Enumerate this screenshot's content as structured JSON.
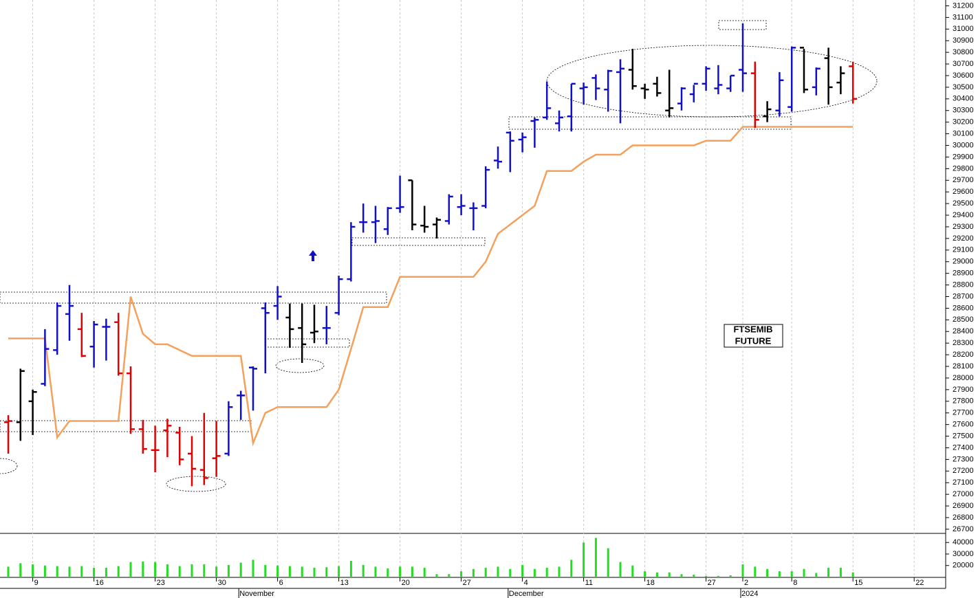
{
  "chart_data": {
    "type": "ohlc",
    "categories": [
      null,
      null,
      "9",
      null,
      null,
      null,
      null,
      "16",
      null,
      null,
      null,
      null,
      "23",
      null,
      null,
      null,
      null,
      "30",
      null,
      null,
      null,
      null,
      "6",
      null,
      null,
      null,
      null,
      "13",
      null,
      null,
      null,
      null,
      "20",
      null,
      null,
      null,
      null,
      "27",
      null,
      null,
      null,
      null,
      "4",
      null,
      null,
      null,
      null,
      "11",
      null,
      null,
      null,
      null,
      "18",
      null,
      null,
      null,
      null,
      "27",
      null,
      null,
      "2",
      null,
      null,
      null,
      "8",
      null,
      null,
      null,
      null,
      "15",
      null,
      null,
      null,
      null,
      "22",
      null,
      null
    ],
    "months": [
      null,
      null,
      null,
      null,
      null,
      null,
      null,
      null,
      null,
      null,
      null,
      null,
      null,
      null,
      null,
      null,
      null,
      null,
      null,
      "November",
      null,
      null,
      null,
      null,
      null,
      null,
      null,
      null,
      null,
      null,
      null,
      null,
      null,
      null,
      null,
      null,
      null,
      null,
      null,
      null,
      null,
      "December",
      null,
      null,
      null,
      null,
      null,
      null,
      null,
      null,
      null,
      null,
      null,
      null,
      null,
      null,
      null,
      null,
      null,
      null,
      "2024",
      null,
      null,
      null,
      null,
      null,
      null,
      null,
      null,
      null,
      null,
      null,
      null,
      null,
      null,
      null,
      null
    ],
    "ohlc": [
      [
        27620,
        27680,
        27350,
        27630
      ],
      [
        27620,
        28080,
        27460,
        28060
      ],
      [
        27800,
        27900,
        27510,
        27880
      ],
      [
        27950,
        28420,
        27930,
        28250
      ],
      [
        28240,
        28650,
        28200,
        28620
      ],
      [
        28550,
        28800,
        28320,
        28620
      ],
      [
        28420,
        28560,
        28180,
        28190
      ],
      [
        28270,
        28490,
        28090,
        28460
      ],
      [
        28440,
        28510,
        28150,
        28440
      ],
      [
        28480,
        28560,
        28020,
        28040
      ],
      [
        28040,
        28100,
        27520,
        27560
      ],
      [
        27560,
        27640,
        27350,
        27390
      ],
      [
        27380,
        27590,
        27190,
        27380
      ],
      [
        27550,
        27650,
        27320,
        27590
      ],
      [
        27530,
        27580,
        27250,
        27300
      ],
      [
        27350,
        27500,
        27070,
        27220
      ],
      [
        27210,
        27700,
        27080,
        27140
      ],
      [
        27310,
        27630,
        27150,
        27330
      ],
      [
        27350,
        27800,
        27330,
        27750
      ],
      [
        27850,
        27890,
        27640,
        27850
      ],
      [
        28090,
        28100,
        27720,
        28080
      ],
      [
        28600,
        28650,
        28040,
        28560
      ],
      [
        28620,
        28790,
        28500,
        28700
      ],
      [
        28520,
        28640,
        28260,
        28420
      ],
      [
        28430,
        28640,
        28130,
        28290
      ],
      [
        28390,
        28630,
        28300,
        28400
      ],
      [
        28430,
        28620,
        28290,
        28430
      ],
      [
        28560,
        28880,
        28540,
        28850
      ],
      [
        28850,
        29340,
        28830,
        29300
      ],
      [
        29340,
        29500,
        29250,
        29340
      ],
      [
        29340,
        29480,
        29160,
        29350
      ],
      [
        29280,
        29470,
        29230,
        29460
      ],
      [
        29460,
        29740,
        29420,
        29470
      ],
      [
        29700,
        29700,
        29270,
        29320
      ],
      [
        29310,
        29480,
        29250,
        29300
      ],
      [
        29320,
        29380,
        29200,
        29360
      ],
      [
        29350,
        29580,
        29320,
        29560
      ],
      [
        29470,
        29580,
        29400,
        29480
      ],
      [
        29460,
        29510,
        29270,
        29460
      ],
      [
        29480,
        29820,
        29460,
        29790
      ],
      [
        29870,
        29990,
        29800,
        29860
      ],
      [
        30110,
        30120,
        29770,
        30040
      ],
      [
        30050,
        30110,
        29940,
        30070
      ],
      [
        30210,
        30240,
        29980,
        30220
      ],
      [
        30240,
        30550,
        30220,
        30320
      ],
      [
        30190,
        30300,
        30120,
        30240
      ],
      [
        30250,
        30530,
        30120,
        30530
      ],
      [
        30490,
        30540,
        30350,
        30500
      ],
      [
        30580,
        30610,
        30390,
        30490
      ],
      [
        30480,
        30650,
        30290,
        30640
      ],
      [
        30630,
        30740,
        30190,
        30660
      ],
      [
        30650,
        30830,
        30480,
        30510
      ],
      [
        30490,
        30530,
        30400,
        30480
      ],
      [
        30530,
        30590,
        30420,
        30450
      ],
      [
        30300,
        30650,
        30240,
        30320
      ],
      [
        30360,
        30500,
        30300,
        30490
      ],
      [
        30440,
        30520,
        30370,
        30530
      ],
      [
        30530,
        30680,
        30470,
        30660
      ],
      [
        30490,
        30690,
        30440,
        30520
      ],
      [
        30490,
        30600,
        30460,
        30600
      ],
      [
        30650,
        31050,
        30460,
        30620
      ],
      [
        30620,
        30720,
        30150,
        30220
      ],
      [
        30250,
        30380,
        30200,
        30310
      ],
      [
        30300,
        30630,
        30250,
        30560
      ],
      [
        30330,
        30850,
        30290,
        30840
      ],
      [
        30840,
        30830,
        30450,
        30480
      ],
      [
        30500,
        30670,
        30430,
        30660
      ],
      [
        30750,
        30840,
        30350,
        30500
      ],
      [
        30540,
        30680,
        30440,
        30620
      ],
      [
        30680,
        30720,
        30360,
        30400
      ],
      null,
      null,
      null,
      null,
      null,
      null,
      null
    ],
    "bar_colors": [
      "#e00000",
      "#000000",
      "#000000",
      "#1010c8",
      "#1010c8",
      "#1010c8",
      "#e00000",
      "#1010c8",
      "#1010c8",
      "#e00000",
      "#e00000",
      "#e00000",
      "#e00000",
      "#e00000",
      "#e00000",
      "#e00000",
      "#e00000",
      "#e00000",
      "#1010c8",
      "#1010c8",
      "#1010c8",
      "#1010c8",
      "#1010c8",
      "#000000",
      "#000000",
      "#000000",
      "#1010c8",
      "#1010c8",
      "#1010c8",
      "#1010c8",
      "#1010c8",
      "#1010c8",
      "#1010c8",
      "#000000",
      "#000000",
      "#000000",
      "#1010c8",
      "#1010c8",
      "#1010c8",
      "#1010c8",
      "#1010c8",
      "#1010c8",
      "#1010c8",
      "#1010c8",
      "#1010c8",
      "#1010c8",
      "#1010c8",
      "#1010c8",
      "#1010c8",
      "#1010c8",
      "#1010c8",
      "#000000",
      "#000000",
      "#000000",
      "#000000",
      "#1010c8",
      "#1010c8",
      "#1010c8",
      "#1010c8",
      "#1010c8",
      "#1010c8",
      "#e00000",
      "#000000",
      "#1010c8",
      "#1010c8",
      "#000000",
      "#1010c8",
      "#000000",
      "#000000",
      "#e00000",
      null,
      null,
      null,
      null,
      null,
      null,
      null
    ],
    "stop_line": {
      "color": "#f5a05a",
      "values": [
        28340,
        28340,
        28340,
        28340,
        27490,
        27630,
        27630,
        27630,
        27630,
        27630,
        28700,
        28380,
        28290,
        28290,
        28240,
        28190,
        28190,
        28190,
        28190,
        28190,
        27440,
        27700,
        27750,
        27750,
        27750,
        27750,
        27750,
        27900,
        28250,
        28610,
        28610,
        28610,
        28870,
        28870,
        28870,
        28870,
        28870,
        28870,
        28870,
        29000,
        29240,
        29320,
        29400,
        29480,
        29780,
        29780,
        29780,
        29860,
        29920,
        29920,
        29920,
        30000,
        30000,
        30000,
        30000,
        30000,
        30000,
        30040,
        30040,
        30040,
        30160,
        30160,
        30160,
        30160,
        30160,
        30160,
        30160,
        30160,
        30160,
        30160,
        null,
        null,
        null,
        null,
        null,
        null,
        null
      ]
    },
    "ylim": [
      26670,
      31250
    ],
    "yticks": [
      26700,
      26800,
      26900,
      27000,
      27100,
      27200,
      27300,
      27400,
      27500,
      27600,
      27700,
      27800,
      27900,
      28000,
      28100,
      28200,
      28300,
      28400,
      28500,
      28600,
      28700,
      28800,
      28900,
      29000,
      29100,
      29200,
      29300,
      29400,
      29500,
      29600,
      29700,
      29800,
      29900,
      30000,
      30100,
      30200,
      30300,
      30400,
      30500,
      30600,
      30700,
      30800,
      30900,
      31000,
      31100,
      31200
    ],
    "volume": {
      "color": "#22dd22",
      "values": [
        19000,
        22000,
        21000,
        20000,
        19500,
        19000,
        19500,
        18000,
        18000,
        19500,
        23000,
        23500,
        23000,
        21000,
        19500,
        21000,
        21000,
        19000,
        20500,
        22500,
        25000,
        20500,
        20000,
        19500,
        19000,
        18000,
        18500,
        19500,
        24000,
        20500,
        19000,
        17500,
        19000,
        19000,
        18000,
        12500,
        12500,
        15000,
        17000,
        18000,
        19000,
        17000,
        20500,
        17000,
        18000,
        19000,
        25000,
        40000,
        44000,
        35000,
        23000,
        20000,
        15000,
        14000,
        14000,
        12500,
        12000,
        11000,
        11000,
        11500,
        21000,
        19000,
        17000,
        15000,
        15000,
        17000,
        13500,
        18000,
        18000,
        14000,
        null,
        null,
        null,
        null,
        null,
        null,
        null
      ],
      "ylim": [
        9700,
        47300
      ],
      "yticks": [
        20000,
        30000,
        40000
      ]
    },
    "annotation": [
      "FTSEMIB",
      "FUTURE"
    ],
    "grid": true
  }
}
